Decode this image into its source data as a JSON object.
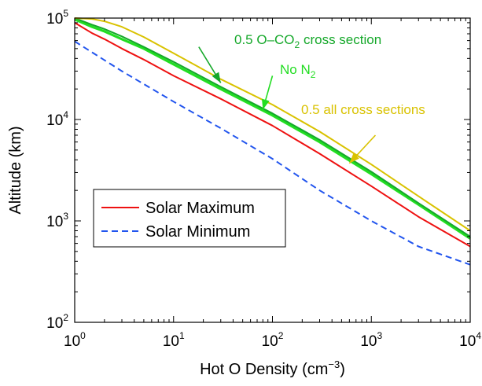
{
  "chart_data": {
    "type": "line",
    "xscale": "log",
    "yscale": "log",
    "xlim": [
      1,
      10000
    ],
    "ylim": [
      100,
      100000
    ],
    "grid": false,
    "xlabel": {
      "text": "Hot O Density (cm",
      "sup": "−3",
      "end": ")"
    },
    "ylabel": "Altitude (km)",
    "x_ticks": [
      {
        "base": "10",
        "exp": "0",
        "value": 1
      },
      {
        "base": "10",
        "exp": "1",
        "value": 10
      },
      {
        "base": "10",
        "exp": "2",
        "value": 100
      },
      {
        "base": "10",
        "exp": "3",
        "value": 1000
      },
      {
        "base": "10",
        "exp": "4",
        "value": 10000
      }
    ],
    "y_ticks": [
      {
        "base": "10",
        "exp": "2",
        "value": 100
      },
      {
        "base": "10",
        "exp": "3",
        "value": 1000
      },
      {
        "base": "10",
        "exp": "4",
        "value": 10000
      },
      {
        "base": "10",
        "exp": "5",
        "value": 100000
      }
    ],
    "legend": {
      "placement": "center-left",
      "entries": [
        {
          "label": "Solar Maximum",
          "series": "solar_max"
        },
        {
          "label": "Solar Minimum",
          "series": "solar_min"
        }
      ]
    },
    "series": [
      {
        "id": "solar_min",
        "name": "Solar Minimum",
        "color": "#2255ee",
        "dash": true,
        "x": [
          1,
          3,
          10,
          30,
          100,
          300,
          1000,
          3000,
          10000
        ],
        "y": [
          59000,
          30000,
          15000,
          8200,
          4100,
          2000,
          1000,
          560,
          370
        ]
      },
      {
        "id": "solar_max",
        "name": "Solar Maximum",
        "color": "#ee1111",
        "dash": false,
        "x": [
          1,
          1.5,
          2,
          3,
          5,
          10,
          30,
          100,
          300,
          1000,
          3000,
          10000
        ],
        "y": [
          90000,
          71000,
          62000,
          50000,
          39000,
          27000,
          16000,
          8700,
          4600,
          2200,
          1100,
          560
        ]
      },
      {
        "id": "no_n2",
        "color": "#22dd22",
        "dash": false,
        "x": [
          1,
          1.5,
          2,
          3,
          5,
          10,
          30,
          100,
          300,
          1000,
          3000,
          10000
        ],
        "y": [
          97000,
          82000,
          74000,
          62000,
          50000,
          35000,
          20000,
          11000,
          6000,
          2900,
          1450,
          670
        ]
      },
      {
        "id": "half_o_co2",
        "color": "#15a82a",
        "dash": false,
        "x": [
          1,
          1.5,
          2,
          3,
          5,
          10,
          30,
          100,
          300,
          1000,
          3000,
          10000
        ],
        "y": [
          100000,
          86000,
          78000,
          66000,
          52000,
          37000,
          21000,
          11500,
          6300,
          3050,
          1500,
          700
        ]
      },
      {
        "id": "half_all",
        "color": "#d9c200",
        "dash": false,
        "x": [
          1,
          1.5,
          2,
          3,
          5,
          10,
          30,
          100,
          300,
          1000,
          3000,
          10000
        ],
        "y": [
          100000,
          98000,
          93000,
          82000,
          65000,
          45000,
          25000,
          14000,
          7600,
          3600,
          1750,
          800
        ]
      }
    ],
    "annotations": [
      {
        "id": "half_o_co2",
        "text": "0.5 O–CO",
        "sub": "2",
        "text_end": " cross section",
        "color": "#15a82a",
        "arrow_from": [
          18,
          52000
        ],
        "arrow_to": [
          30,
          23000
        ]
      },
      {
        "id": "no_n2",
        "text": "No N",
        "sub": "2",
        "text_end": "",
        "color": "#22dd22",
        "arrow_from": [
          100,
          27000
        ],
        "arrow_to": [
          80,
          12500
        ]
      },
      {
        "id": "half_all",
        "text": "0.5 all cross sections",
        "text_end": "",
        "color": "#d9c200",
        "arrow_from": [
          1100,
          7000
        ],
        "arrow_to": [
          600,
          3700
        ]
      }
    ]
  }
}
